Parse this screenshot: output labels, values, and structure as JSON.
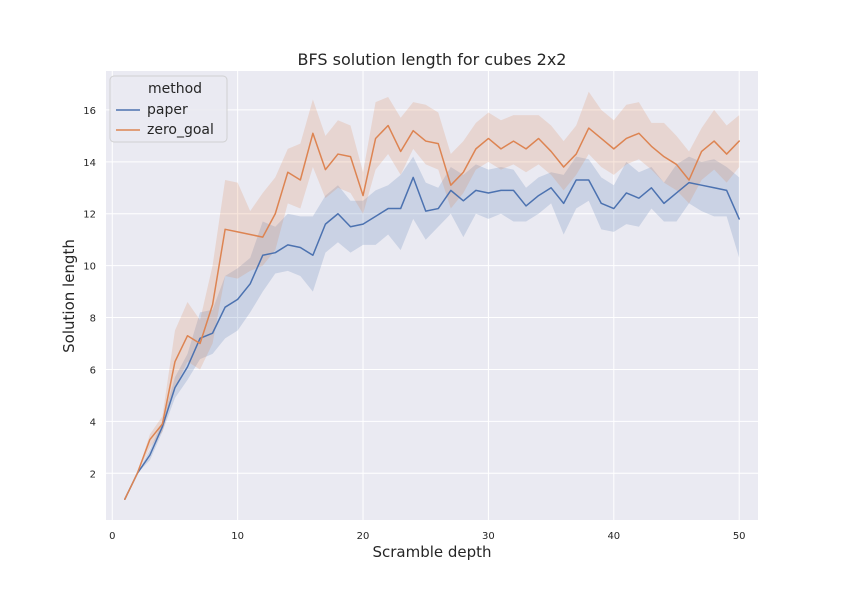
{
  "chart_data": {
    "type": "line",
    "title": "BFS solution length for cubes 2x2",
    "xlabel": "Scramble depth",
    "ylabel": "Solution length",
    "xlim": [
      -0.5,
      51.5
    ],
    "ylim": [
      0.2,
      17.5
    ],
    "xticks": [
      0,
      10,
      20,
      30,
      40,
      50
    ],
    "yticks": [
      2,
      4,
      6,
      8,
      10,
      12,
      14,
      16
    ],
    "grid": true,
    "legend": {
      "title": "method",
      "position": "top-left"
    },
    "x": [
      1,
      2,
      3,
      4,
      5,
      6,
      7,
      8,
      9,
      10,
      11,
      12,
      13,
      14,
      15,
      16,
      17,
      18,
      19,
      20,
      21,
      22,
      23,
      24,
      25,
      26,
      27,
      28,
      29,
      30,
      31,
      32,
      33,
      34,
      35,
      36,
      37,
      38,
      39,
      40,
      41,
      42,
      43,
      44,
      45,
      46,
      47,
      48,
      49,
      50
    ],
    "series": [
      {
        "name": "paper",
        "color": "#4c72b0",
        "values": [
          1.0,
          2.0,
          2.7,
          3.8,
          5.3,
          6.1,
          7.2,
          7.4,
          8.4,
          8.7,
          9.3,
          10.4,
          10.5,
          10.8,
          10.7,
          10.4,
          11.6,
          12.0,
          11.5,
          11.6,
          11.9,
          12.2,
          12.2,
          13.4,
          12.1,
          12.2,
          12.9,
          12.5,
          12.9,
          12.8,
          12.9,
          12.9,
          12.3,
          12.7,
          13.0,
          12.4,
          13.3,
          13.3,
          12.4,
          12.2,
          12.8,
          12.6,
          13.0,
          12.4,
          12.8,
          13.2,
          13.1,
          13.0,
          12.9,
          11.8
        ],
        "lower": [
          1.0,
          2.0,
          2.5,
          3.6,
          4.9,
          5.6,
          6.4,
          6.6,
          7.2,
          7.5,
          8.2,
          9.0,
          9.7,
          9.8,
          9.6,
          9.0,
          10.5,
          10.9,
          10.5,
          10.8,
          10.8,
          11.2,
          10.6,
          11.8,
          11.0,
          11.5,
          12.0,
          11.1,
          12.0,
          11.8,
          12.0,
          11.7,
          11.7,
          12.0,
          12.4,
          11.2,
          12.2,
          12.5,
          11.4,
          11.3,
          11.6,
          11.5,
          12.2,
          11.7,
          11.7,
          12.4,
          12.1,
          11.9,
          11.9,
          10.3
        ],
        "upper": [
          1.0,
          2.0,
          2.9,
          4.0,
          5.7,
          6.6,
          8.2,
          8.3,
          9.6,
          9.9,
          10.3,
          11.7,
          11.5,
          12.0,
          11.9,
          11.9,
          12.7,
          13.1,
          12.5,
          12.5,
          12.9,
          13.1,
          13.5,
          14.2,
          13.2,
          13.0,
          13.8,
          13.5,
          13.9,
          13.7,
          13.8,
          13.7,
          13.0,
          13.4,
          13.6,
          13.5,
          14.2,
          14.1,
          13.4,
          13.1,
          14.0,
          13.6,
          13.8,
          13.2,
          13.9,
          14.2,
          14.0,
          14.1,
          13.8,
          13.4
        ]
      },
      {
        "name": "zero_goal",
        "color": "#dd8452",
        "values": [
          1.0,
          2.0,
          3.3,
          3.9,
          6.3,
          7.3,
          7.0,
          8.5,
          11.4,
          11.3,
          11.2,
          11.1,
          12.0,
          13.6,
          13.3,
          15.1,
          13.7,
          14.3,
          14.2,
          12.7,
          14.9,
          15.4,
          14.4,
          15.2,
          14.8,
          14.7,
          13.1,
          13.6,
          14.5,
          14.9,
          14.5,
          14.8,
          14.5,
          14.9,
          14.4,
          13.8,
          14.3,
          15.3,
          14.9,
          14.5,
          14.9,
          15.1,
          14.6,
          14.2,
          13.9,
          13.3,
          14.4,
          14.8,
          14.3,
          14.8
        ],
        "lower": [
          1.0,
          2.0,
          3.0,
          3.6,
          5.3,
          6.3,
          6.0,
          7.0,
          9.6,
          9.5,
          9.8,
          10.0,
          10.6,
          12.4,
          12.2,
          13.8,
          12.6,
          13.0,
          12.8,
          12.0,
          13.7,
          14.3,
          13.5,
          14.5,
          13.9,
          13.7,
          12.2,
          12.8,
          13.7,
          14.0,
          13.7,
          13.9,
          13.6,
          13.9,
          13.5,
          12.9,
          13.5,
          14.3,
          13.8,
          13.5,
          13.9,
          14.1,
          13.7,
          13.2,
          12.9,
          12.4,
          13.3,
          13.7,
          13.2,
          13.8
        ],
        "upper": [
          1.0,
          2.0,
          3.5,
          4.2,
          7.5,
          8.6,
          7.9,
          10.0,
          13.3,
          13.2,
          12.1,
          12.8,
          13.4,
          14.5,
          14.7,
          16.4,
          15.0,
          15.6,
          15.4,
          13.6,
          16.3,
          16.5,
          15.7,
          16.3,
          16.2,
          15.9,
          14.3,
          14.8,
          15.5,
          15.9,
          15.6,
          15.8,
          15.8,
          15.8,
          15.4,
          14.8,
          15.4,
          16.7,
          16.0,
          15.6,
          16.2,
          16.3,
          15.5,
          15.5,
          15.0,
          14.4,
          15.3,
          16.0,
          15.4,
          15.8
        ]
      }
    ]
  }
}
